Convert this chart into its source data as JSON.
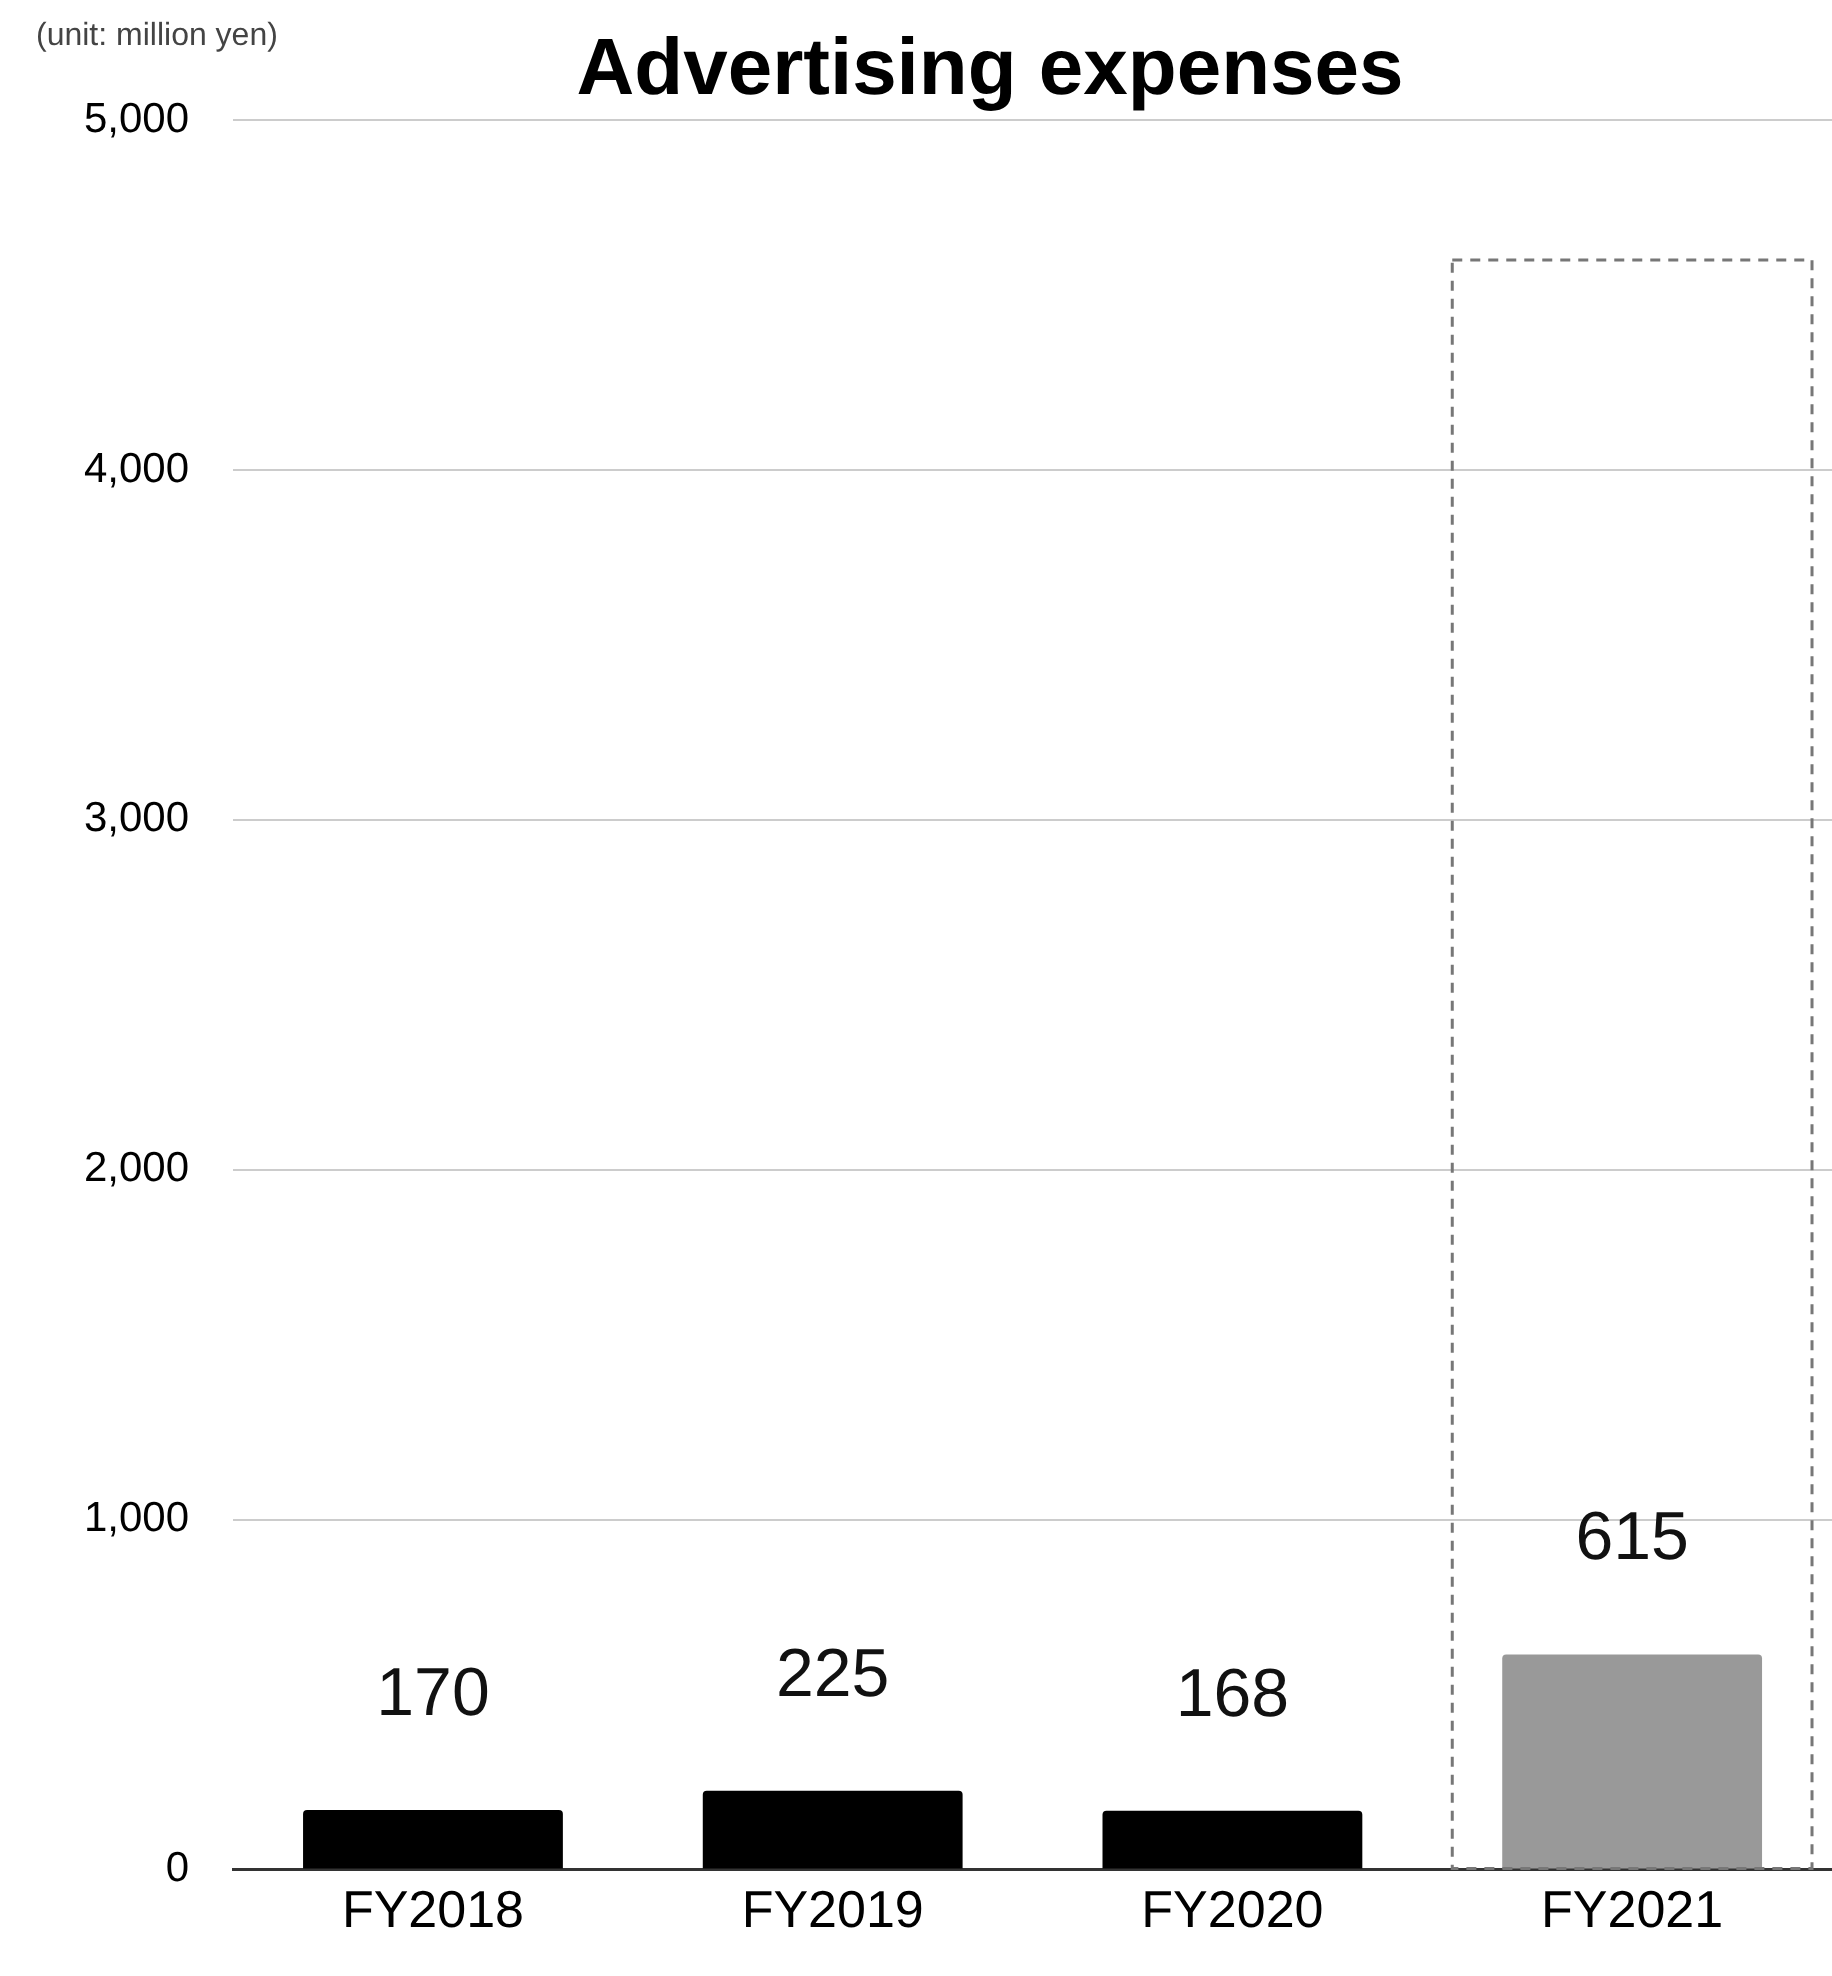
{
  "chart_data": {
    "type": "bar",
    "title": "Advertising expenses",
    "annotations": [
      "(unit: million yen)"
    ],
    "categories": [
      "FY2018",
      "FY2019",
      "FY2020",
      "FY2021"
    ],
    "series": [
      {
        "values": [
          170,
          225,
          168,
          615
        ],
        "colors": [
          "#000000",
          "#000000",
          "#000000",
          "#999999"
        ],
        "value_labels": [
          "170",
          "225",
          "168",
          "615"
        ]
      },
      {
        "values": [
          null,
          null,
          null,
          4600
        ],
        "color": "#777777",
        "line_style": "dashed"
      }
    ],
    "ylim": [
      0,
      5000
    ],
    "yticks": [
      {
        "value": 0,
        "label": "0"
      },
      {
        "value": 1000,
        "label": "1,000"
      },
      {
        "value": 2000,
        "label": "2,000"
      },
      {
        "value": 3000,
        "label": "3,000"
      },
      {
        "value": 4000,
        "label": "4,000"
      },
      {
        "value": 5000,
        "label": "5,000"
      }
    ],
    "grid": "y"
  }
}
